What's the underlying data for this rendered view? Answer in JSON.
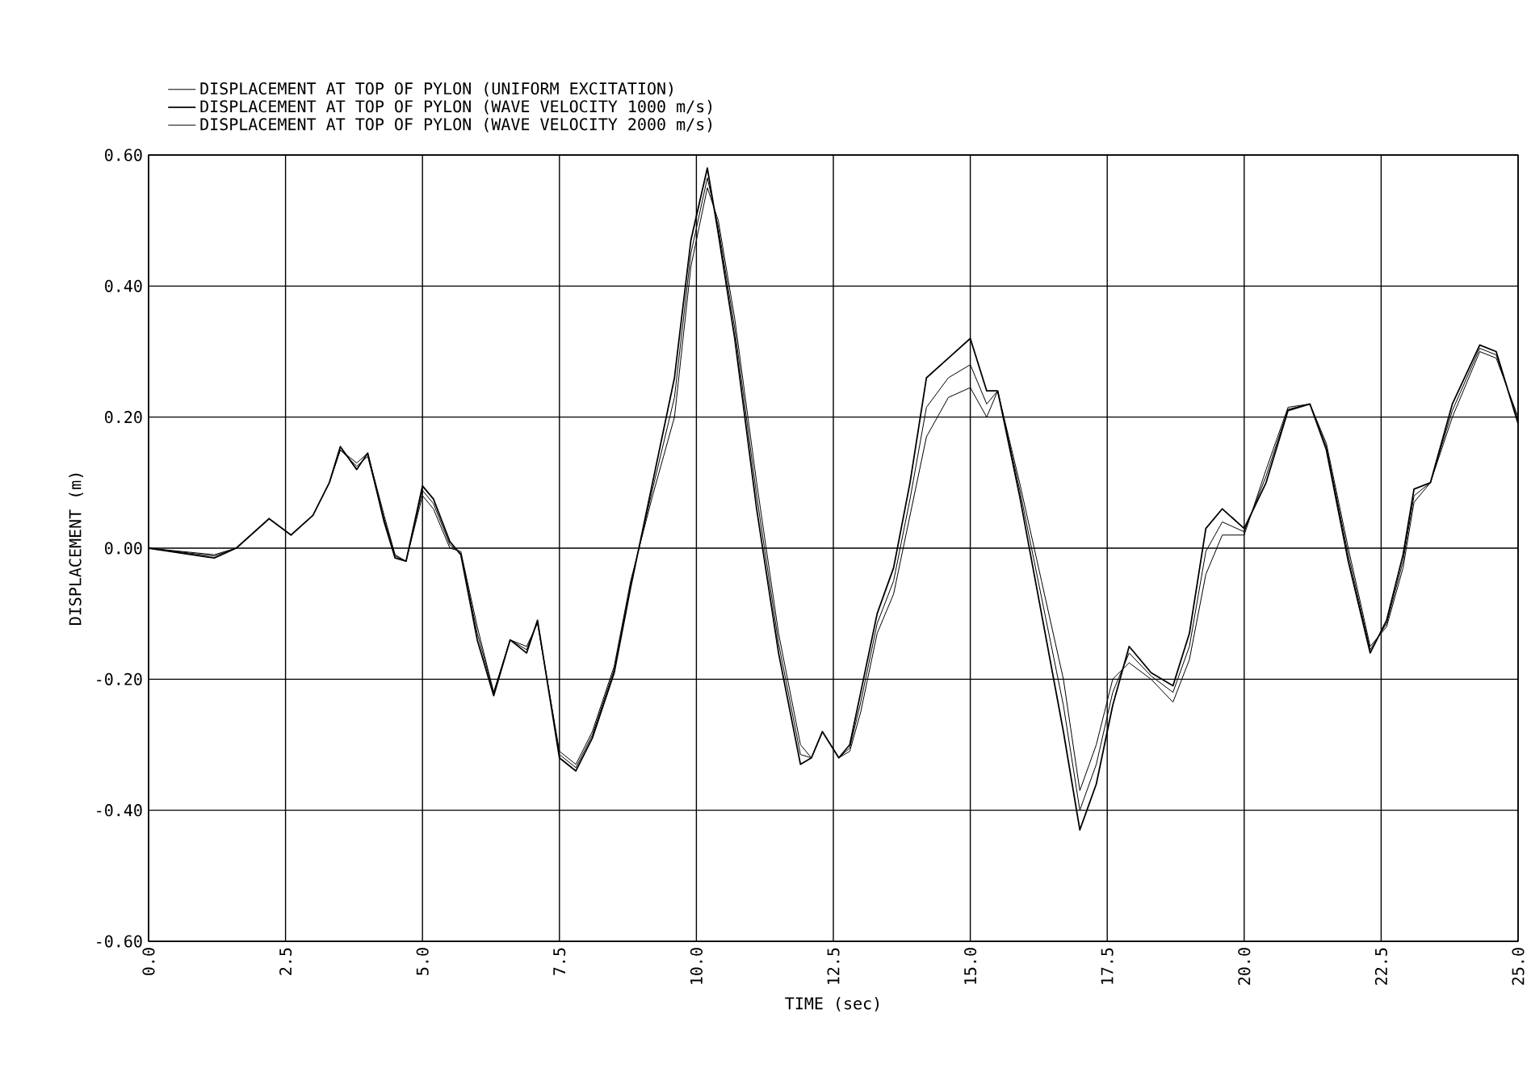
{
  "chart_data": {
    "type": "line",
    "xlabel": "TIME (sec)",
    "ylabel": "DISPLACEMENT (m)",
    "x": [
      0,
      1.2,
      1.6,
      2.2,
      2.6,
      3.0,
      3.3,
      3.5,
      3.8,
      4.0,
      4.3,
      4.5,
      4.7,
      5.0,
      5.2,
      5.5,
      5.7,
      6.0,
      6.3,
      6.6,
      6.9,
      7.1,
      7.5,
      7.8,
      8.1,
      8.5,
      8.8,
      9.2,
      9.6,
      9.9,
      10.2,
      10.4,
      10.7,
      11.1,
      11.5,
      11.9,
      12.1,
      12.3,
      12.6,
      12.8,
      13.0,
      13.3,
      13.6,
      13.9,
      14.2,
      14.6,
      15.0,
      15.3,
      15.5,
      15.9,
      16.3,
      16.7,
      17.0,
      17.3,
      17.6,
      17.9,
      18.3,
      18.7,
      19.0,
      19.3,
      19.6,
      20.0,
      20.4,
      20.8,
      21.2,
      21.5,
      21.9,
      22.3,
      22.6,
      22.9,
      23.1,
      23.4,
      23.8,
      24.3,
      24.6,
      25.0
    ],
    "series": [
      {
        "name": "DISPLACEMENT AT TOP OF PYLON (UNIFORM EXCITATION)",
        "color": "#000000",
        "values": [
          0,
          -0.01,
          0,
          0.045,
          0.02,
          0.05,
          0.1,
          0.15,
          0.13,
          0.145,
          0.05,
          -0.01,
          -0.02,
          0.08,
          0.06,
          0,
          -0.005,
          -0.12,
          -0.22,
          -0.14,
          -0.15,
          -0.115,
          -0.31,
          -0.33,
          -0.28,
          -0.18,
          -0.05,
          0.08,
          0.2,
          0.43,
          0.55,
          0.5,
          0.35,
          0.1,
          -0.13,
          -0.3,
          -0.32,
          -0.28,
          -0.32,
          -0.31,
          -0.25,
          -0.13,
          -0.07,
          0.05,
          0.17,
          0.23,
          0.245,
          0.2,
          0.24,
          0.1,
          -0.05,
          -0.2,
          -0.37,
          -0.3,
          -0.2,
          -0.175,
          -0.2,
          -0.235,
          -0.17,
          -0.04,
          0.02,
          0.02,
          0.12,
          0.215,
          0.22,
          0.16,
          0,
          -0.15,
          -0.12,
          -0.03,
          0.07,
          0.1,
          0.2,
          0.3,
          0.29,
          0.2
        ]
      },
      {
        "name": "DISPLACEMENT AT TOP OF PYLON (WAVE VELOCITY 1000 m/s)",
        "color": "#000000",
        "values": [
          0,
          -0.015,
          0,
          0.045,
          0.02,
          0.05,
          0.1,
          0.155,
          0.12,
          0.145,
          0.04,
          -0.015,
          -0.02,
          0.095,
          0.075,
          0.01,
          -0.01,
          -0.14,
          -0.225,
          -0.14,
          -0.16,
          -0.11,
          -0.32,
          -0.34,
          -0.29,
          -0.19,
          -0.06,
          0.1,
          0.26,
          0.47,
          0.58,
          0.48,
          0.32,
          0.06,
          -0.16,
          -0.33,
          -0.32,
          -0.28,
          -0.32,
          -0.3,
          -0.22,
          -0.1,
          -0.03,
          0.1,
          0.26,
          0.29,
          0.32,
          0.24,
          0.24,
          0.08,
          -0.1,
          -0.28,
          -0.43,
          -0.36,
          -0.24,
          -0.15,
          -0.19,
          -0.21,
          -0.13,
          0.03,
          0.06,
          0.03,
          0.1,
          0.21,
          0.22,
          0.15,
          -0.02,
          -0.16,
          -0.11,
          -0.01,
          0.09,
          0.1,
          0.22,
          0.31,
          0.3,
          0.19
        ]
      },
      {
        "name": "DISPLACEMENT AT TOP OF PYLON (WAVE VELOCITY 2000 m/s)",
        "color": "#000000",
        "values": [
          0,
          -0.012,
          0,
          0.045,
          0.02,
          0.05,
          0.1,
          0.15,
          0.125,
          0.14,
          0.045,
          -0.012,
          -0.02,
          0.088,
          0.068,
          0.005,
          -0.008,
          -0.13,
          -0.22,
          -0.14,
          -0.155,
          -0.112,
          -0.315,
          -0.335,
          -0.285,
          -0.185,
          -0.055,
          0.09,
          0.23,
          0.45,
          0.565,
          0.49,
          0.335,
          0.08,
          -0.145,
          -0.315,
          -0.32,
          -0.28,
          -0.32,
          -0.305,
          -0.235,
          -0.115,
          -0.05,
          0.075,
          0.215,
          0.26,
          0.28,
          0.22,
          0.24,
          0.09,
          -0.075,
          -0.24,
          -0.4,
          -0.33,
          -0.22,
          -0.16,
          -0.195,
          -0.22,
          -0.15,
          -0.005,
          0.04,
          0.025,
          0.11,
          0.212,
          0.22,
          0.155,
          -0.01,
          -0.155,
          -0.115,
          -0.02,
          0.08,
          0.1,
          0.21,
          0.305,
          0.295,
          0.195
        ]
      }
    ],
    "xlim": [
      0,
      25
    ],
    "ylim": [
      -0.6,
      0.6
    ],
    "xticks": [
      {
        "value": 0,
        "label": "0.0"
      },
      {
        "value": 2.5,
        "label": "2.5"
      },
      {
        "value": 5,
        "label": "5.0"
      },
      {
        "value": 7.5,
        "label": "7.5"
      },
      {
        "value": 10,
        "label": "10.0"
      },
      {
        "value": 12.5,
        "label": "12.5"
      },
      {
        "value": 15,
        "label": "15.0"
      },
      {
        "value": 17.5,
        "label": "17.5"
      },
      {
        "value": 20,
        "label": "20.0"
      },
      {
        "value": 22.5,
        "label": "22.5"
      },
      {
        "value": 25,
        "label": "25.0"
      }
    ],
    "yticks": [
      {
        "value": -0.6,
        "label": "-0.60"
      },
      {
        "value": -0.4,
        "label": "-0.40"
      },
      {
        "value": -0.2,
        "label": "-0.20"
      },
      {
        "value": 0,
        "label": "0.00"
      },
      {
        "value": 0.2,
        "label": "0.20"
      },
      {
        "value": 0.4,
        "label": "0.40"
      },
      {
        "value": 0.6,
        "label": "0.60"
      }
    ],
    "grid": true,
    "legend": "top",
    "marker": "none",
    "line_style": "solid"
  }
}
